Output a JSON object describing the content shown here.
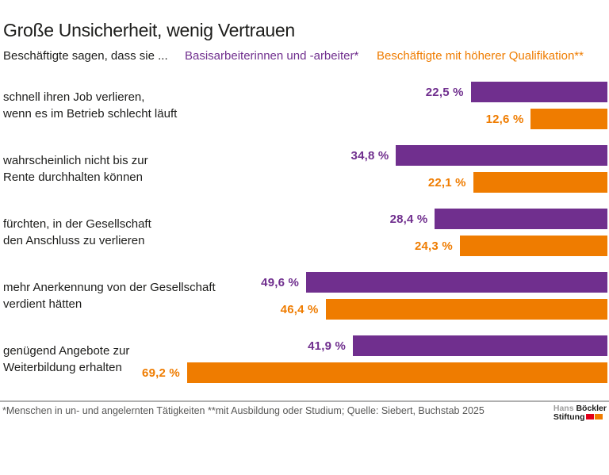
{
  "header": {
    "title": "Große Unsicherheit, wenig Vertrauen",
    "subtitle": "Beschäftigte sagen, dass sie ..."
  },
  "legend": {
    "series1": "Basisarbeiterinnen und -arbeiter*",
    "series2": "Beschäftigte mit höherer Qualifikation**"
  },
  "colors": {
    "purple": "#702f8e",
    "orange": "#ef7c00",
    "text": "#1d1d1b",
    "footnote_gray": "#575756",
    "divider_gray": "#b0b0b0",
    "logo_gray": "#9d9d9c",
    "logo_red": "#e2001a",
    "logo_orange": "#f07c00"
  },
  "chart_data": {
    "type": "bar",
    "orientation": "horizontal",
    "anchor": "right",
    "unit": "%",
    "xlim": [
      0,
      100
    ],
    "grid": false,
    "legend_position": "top",
    "title": "Große Unsicherheit, wenig Vertrauen",
    "subtitle": "Beschäftigte sagen, dass sie ...",
    "categories": [
      [
        "schnell ihren Job verlieren,",
        "wenn es im Betrieb schlecht läuft"
      ],
      [
        "wahrscheinlich nicht bis zur",
        "Rente durchhalten können"
      ],
      [
        "fürchten, in der Gesellschaft",
        "den Anschluss zu verlieren"
      ],
      [
        "mehr Anerkennung von der Gesellschaft",
        "verdient hätten"
      ],
      [
        "genügend Angebote zur",
        "Weiterbildung erhalten"
      ]
    ],
    "series": [
      {
        "name": "Basisarbeiterinnen und -arbeiter*",
        "color": "#702f8e",
        "values": [
          22.5,
          34.8,
          28.4,
          49.6,
          41.9
        ],
        "labels": [
          "22,5 %",
          "34,8 %",
          "28,4 %",
          "49,6 %",
          "41,9 %"
        ]
      },
      {
        "name": "Beschäftigte mit höherer Qualifikation**",
        "color": "#ef7c00",
        "values": [
          12.6,
          22.1,
          24.3,
          46.4,
          69.2
        ],
        "labels": [
          "12,6 %",
          "22,1 %",
          "24,3 %",
          "46,4 %",
          "69,2 %"
        ]
      }
    ]
  },
  "footer": {
    "footnote": "*Menschen in un- und angelernten Tätigkeiten **mit Ausbildung oder Studium; Quelle: Siebert, Buchstab 2025",
    "logo": {
      "line1_light": "Hans",
      "line1_bold": "Böckler",
      "line2_bold": "Stiftung"
    }
  }
}
